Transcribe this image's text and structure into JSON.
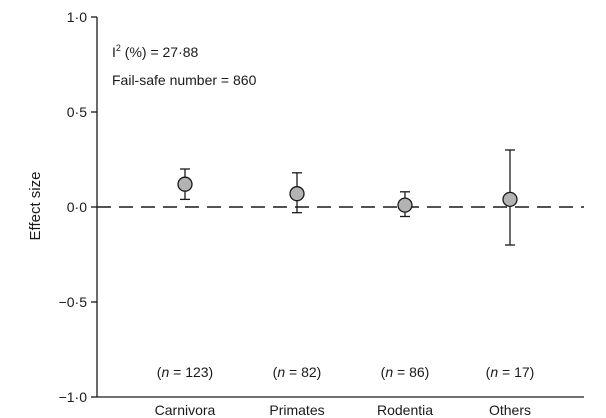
{
  "chart_data": {
    "type": "scatter",
    "ylabel": "Effect size",
    "ylim": [
      -1.0,
      1.0
    ],
    "yticks": [
      {
        "value": 1.0,
        "label": "1·0"
      },
      {
        "value": 0.5,
        "label": "0·5"
      },
      {
        "value": 0.0,
        "label": "0·0"
      },
      {
        "value": -0.5,
        "label": "−0·5"
      },
      {
        "value": -1.0,
        "label": "−1·0"
      }
    ],
    "categories": [
      "Carnivora",
      "Primates",
      "Rodentia",
      "Others"
    ],
    "points": [
      {
        "category": "Carnivora",
        "y": 0.12,
        "ci": [
          0.04,
          0.2
        ],
        "n_prefix": "(",
        "n_symbol": "n",
        "n_text": " = 123)"
      },
      {
        "category": "Primates",
        "y": 0.07,
        "ci": [
          -0.03,
          0.18
        ],
        "n_prefix": "(",
        "n_symbol": "n",
        "n_text": " = 82)"
      },
      {
        "category": "Rodentia",
        "y": 0.01,
        "ci": [
          -0.05,
          0.08
        ],
        "n_prefix": "(",
        "n_symbol": "n",
        "n_text": " = 86)"
      },
      {
        "category": "Others",
        "y": 0.04,
        "ci": [
          -0.2,
          0.3
        ],
        "n_prefix": "(",
        "n_symbol": "n",
        "n_text": " = 17)"
      }
    ],
    "reference_line": {
      "y": 0,
      "style": "dashed"
    },
    "annotations": {
      "i2_base": "I",
      "i2_sup": "2",
      "i2_rest": " (%) = 27·88",
      "failsafe": "Fail-safe number = 860"
    },
    "colors": {
      "marker_fill": "#b3b3b3",
      "ink": "#1a1a1a"
    },
    "grid": false,
    "legend": "none"
  }
}
